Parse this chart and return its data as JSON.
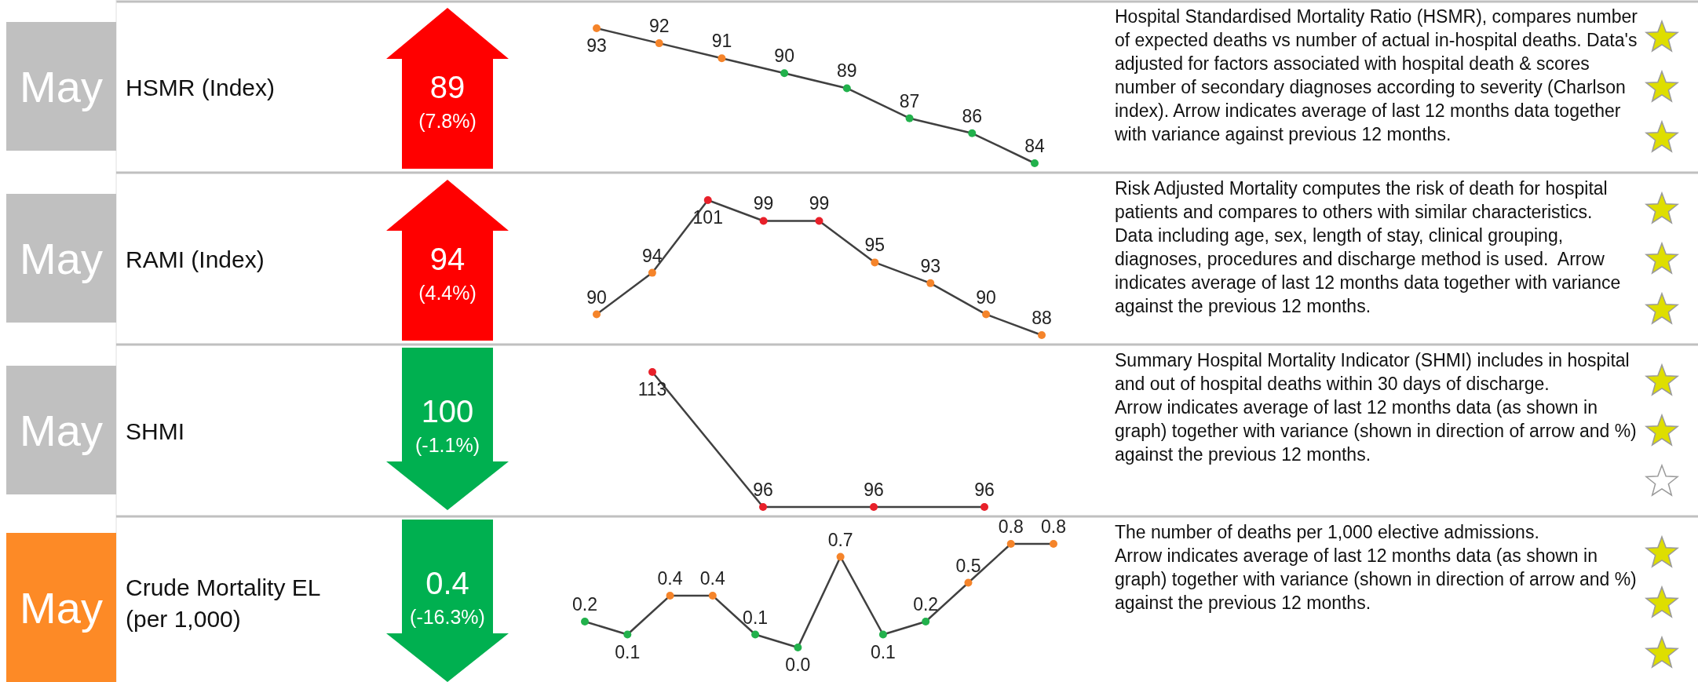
{
  "chart_data": [
    {
      "type": "line",
      "categories": [
        null,
        null,
        null,
        null,
        null,
        null,
        null,
        null
      ],
      "values": [
        93,
        92,
        91,
        90,
        89,
        87,
        86,
        84
      ],
      "color": "#404040",
      "colors": [
        "#f5842a",
        "#f5842a",
        "#f5842a",
        "#22b14c",
        "#22b14c",
        "#22b14c",
        "#22b14c",
        "#22b14c"
      ],
      "marker": "circle",
      "data_labels": true,
      "annotations": [
        "May",
        "HSMR (Index)",
        "89",
        "(7.8%)",
        "Hospital Standardised Mortality Ratio (HSMR), compares number of expected deaths vs number of actual in-hospital deaths. Data's adjusted for factors associated with hospital death & scores number of secondary diagnoses according to severity (Charlson index). Arrow indicates average of last 12 months data together with variance against previous 12 months."
      ]
    },
    {
      "type": "line",
      "categories": [
        null,
        null,
        null,
        null,
        null,
        null,
        null,
        null,
        null
      ],
      "values": [
        90,
        94,
        101,
        99,
        99,
        95,
        93,
        90,
        88
      ],
      "color": "#404040",
      "colors": [
        "#f5842a",
        "#f5842a",
        "#e8202a",
        "#e8202a",
        "#e8202a",
        "#f5842a",
        "#f5842a",
        "#f5842a",
        "#f5842a"
      ],
      "marker": "circle",
      "data_labels": true,
      "annotations": [
        "May",
        "RAMI (Index)",
        "94",
        "(4.4%)",
        "Risk Adjusted Mortality computes the risk of death for hospital patients and compares to others with similar characteristics.  Data including age, sex, length of stay, clinical grouping, diagnoses, procedures and discharge method is used.  Arrow indicates average of last 12 months data together with variance against the previous 12 months."
      ]
    },
    {
      "type": "line",
      "categories": [
        null,
        null,
        null,
        null
      ],
      "values": [
        113,
        96,
        96,
        96
      ],
      "color": "#404040",
      "colors": [
        "#e8202a",
        "#e8202a",
        "#e8202a",
        "#e8202a"
      ],
      "marker": "circle",
      "data_labels": true,
      "annotations": [
        "May",
        "SHMI",
        "100",
        "(-1.1%)",
        "Summary Hospital Mortality Indicator (SHMI) includes in hospital and out of hospital deaths within 30 days of discharge.\nArrow indicates average of last 12 months data (as shown in graph) together with variance (shown in direction of arrow and %) against the previous 12 months."
      ]
    },
    {
      "type": "line",
      "categories": [
        null,
        null,
        null,
        null,
        null,
        null,
        null,
        null,
        null,
        null,
        null,
        null
      ],
      "values": [
        0.2,
        0.1,
        0.4,
        0.4,
        0.1,
        0.0,
        0.7,
        0.1,
        0.2,
        0.5,
        0.8,
        0.8
      ],
      "value_labels": [
        "0.2",
        "0.1",
        "0.4",
        "0.4",
        "0.1",
        "0.0",
        "0.7",
        "0.1",
        "0.2",
        "0.5",
        "0.8",
        "0.8"
      ],
      "color": "#404040",
      "colors": [
        "#22b14c",
        "#22b14c",
        "#f5842a",
        "#f5842a",
        "#22b14c",
        "#22b14c",
        "#f5842a",
        "#22b14c",
        "#22b14c",
        "#f5842a",
        "#f5842a",
        "#f5842a"
      ],
      "marker": "circle",
      "annotations": [
        "May",
        "Crude Mortality EL (per 1,000)",
        "0.4",
        "(-16.3%)",
        "The number of deaths per 1,000 elective admissions.\nArrow indicates average of last 12 months data (as shown in graph) together with variance (shown in direction of arrow and %) against the previous 12 months."
      ]
    }
  ]
}
